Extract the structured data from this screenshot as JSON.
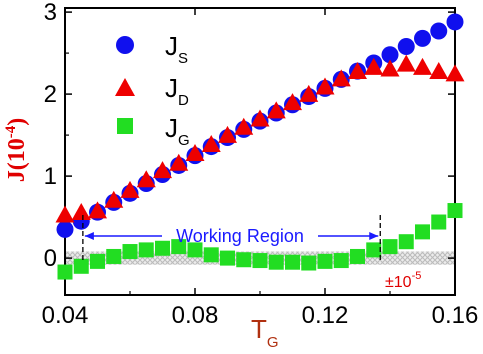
{
  "chart_data": {
    "type": "scatter",
    "xlabel": "T",
    "xlabel_sub": "G",
    "ylabel": "J(10",
    "ylabel_sup": "-4",
    "ylabel_close": ")",
    "xlim": [
      0.04,
      0.16
    ],
    "ylim": [
      -0.45,
      3.05
    ],
    "x_ticks": [
      0.04,
      0.08,
      0.12,
      0.16
    ],
    "x_tick_labels": [
      "0.04",
      "0.08",
      "0.12",
      "0.16"
    ],
    "y_ticks": [
      0,
      1,
      2,
      3
    ],
    "y_tick_labels": [
      "0",
      "1",
      "2",
      "3"
    ],
    "legend_position": "top-left",
    "series": [
      {
        "name": "J",
        "name_sub": "S",
        "marker": "circle",
        "color": "#1010ee",
        "x": [
          0.04,
          0.045,
          0.05,
          0.055,
          0.06,
          0.065,
          0.07,
          0.075,
          0.08,
          0.085,
          0.09,
          0.095,
          0.1,
          0.105,
          0.11,
          0.115,
          0.12,
          0.125,
          0.13,
          0.135,
          0.14,
          0.145,
          0.15,
          0.155,
          0.16
        ],
        "y": [
          0.35,
          0.45,
          0.56,
          0.68,
          0.79,
          0.91,
          1.02,
          1.13,
          1.25,
          1.36,
          1.47,
          1.57,
          1.67,
          1.77,
          1.87,
          1.97,
          2.07,
          2.18,
          2.28,
          2.38,
          2.48,
          2.58,
          2.68,
          2.77,
          2.88
        ]
      },
      {
        "name": "J",
        "name_sub": "D",
        "marker": "triangle",
        "color": "#ee0000",
        "x": [
          0.04,
          0.045,
          0.05,
          0.055,
          0.06,
          0.065,
          0.07,
          0.075,
          0.08,
          0.085,
          0.09,
          0.095,
          0.1,
          0.105,
          0.11,
          0.115,
          0.12,
          0.125,
          0.13,
          0.135,
          0.14,
          0.145,
          0.15,
          0.155,
          0.16
        ],
        "y": [
          0.52,
          0.55,
          0.57,
          0.7,
          0.82,
          0.95,
          1.06,
          1.15,
          1.27,
          1.38,
          1.49,
          1.59,
          1.69,
          1.79,
          1.89,
          1.99,
          2.08,
          2.18,
          2.27,
          2.32,
          2.3,
          2.36,
          2.32,
          2.27,
          2.24
        ]
      },
      {
        "name": "J",
        "name_sub": "G",
        "marker": "square",
        "color": "#22dd22",
        "x": [
          0.04,
          0.045,
          0.05,
          0.055,
          0.06,
          0.065,
          0.07,
          0.075,
          0.08,
          0.085,
          0.09,
          0.095,
          0.1,
          0.105,
          0.11,
          0.115,
          0.12,
          0.125,
          0.13,
          0.135,
          0.14,
          0.145,
          0.15,
          0.155,
          0.16
        ],
        "y": [
          -0.17,
          -0.1,
          -0.04,
          0.02,
          0.08,
          0.1,
          0.12,
          0.14,
          0.1,
          0.04,
          0.0,
          -0.02,
          -0.03,
          -0.05,
          -0.05,
          -0.06,
          -0.04,
          -0.03,
          0.02,
          0.1,
          0.14,
          0.2,
          0.32,
          0.44,
          0.58
        ]
      }
    ],
    "annotations": {
      "working_region": "Working Region",
      "working_region_x": [
        0.0455,
        0.137
      ],
      "band_label": "±10",
      "band_label_sup": "-5",
      "band_range": [
        -0.08,
        0.08
      ]
    },
    "colors": {
      "axis": "#000000",
      "working_region": "#1a1aff",
      "band": "#bbbbbb",
      "ylabel": "#e00000",
      "xlabel": "#b03010"
    }
  }
}
